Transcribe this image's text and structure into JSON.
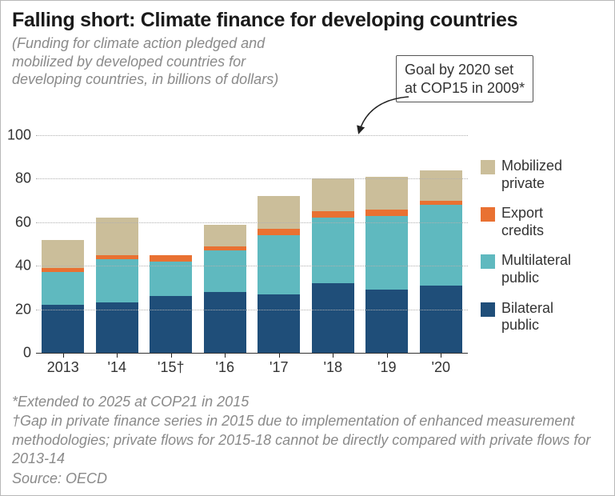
{
  "title": "Falling short: Climate finance for developing countries",
  "subtitle": "(Funding for climate action pledged and\nmobilized by developed countries for\ndeveloping countries, in billions of dollars)",
  "goal_box": {
    "line1": "Goal by 2020 set",
    "line2": "at COP15 in 2009*"
  },
  "chart": {
    "type": "stacked-bar",
    "ylim": [
      0,
      100
    ],
    "ytick_step": 20,
    "grid_color": "#b0b0b0",
    "baseline_color": "#333333",
    "background_color": "#ffffff",
    "categories": [
      "2013",
      "'14",
      "'15†",
      "'16",
      "'17",
      "'18",
      "'19",
      "'20"
    ],
    "series": [
      {
        "key": "bilateral_public",
        "label": "Bilateral public",
        "color": "#1f4e79"
      },
      {
        "key": "multilateral_public",
        "label": "Multilateral public",
        "color": "#5fb9bf"
      },
      {
        "key": "export_credits",
        "label": "Export credits",
        "color": "#e97132"
      },
      {
        "key": "mobilized_private",
        "label": "Mobilized private",
        "color": "#cbbe9a"
      }
    ],
    "data": {
      "bilateral_public": [
        22,
        23,
        26,
        28,
        27,
        32,
        29,
        31
      ],
      "multilateral_public": [
        15,
        20,
        16,
        19,
        27,
        30,
        34,
        37
      ],
      "export_credits": [
        2,
        2,
        3,
        2,
        3,
        3,
        3,
        2
      ],
      "mobilized_private": [
        13,
        17,
        0,
        10,
        15,
        15,
        15,
        14
      ]
    },
    "bar_width_ratio": 0.78,
    "title_fontsize": 25,
    "label_fontsize": 18
  },
  "footnotes": {
    "f1": "*Extended to 2025 at COP21 in 2015",
    "f2": "†Gap in private finance series in 2015 due to implementation of enhanced measurement methodologies; private flows for 2015-18 cannot be directly compared with private flows for 2013-14",
    "f3": "Source: OECD"
  }
}
